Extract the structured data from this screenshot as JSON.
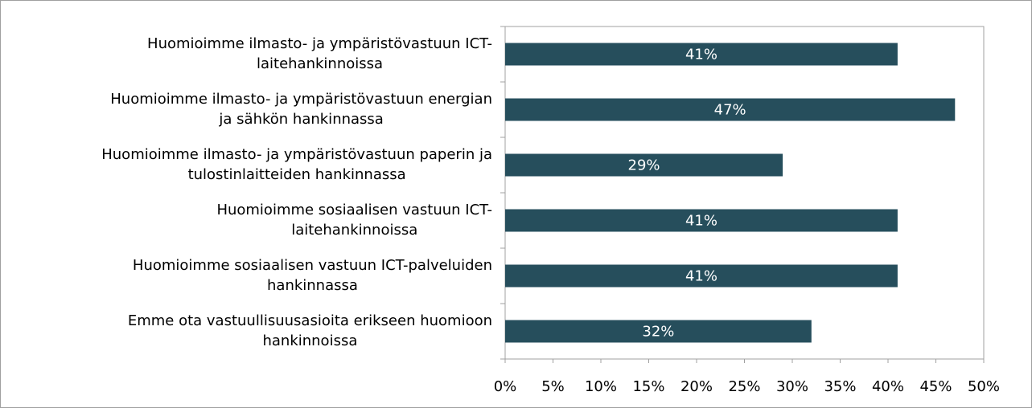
{
  "chart_data": {
    "type": "barh",
    "categories": [
      "Huomioimme ilmasto- ja ympäristövastuun ICT-\nlaitehankinnoissa",
      "Huomioimme ilmasto- ja ympäristövastuun energian\nja sähkön hankinnassa",
      "Huomioimme ilmasto- ja ympäristövastuun paperin ja\ntulostinlaitteiden hankinnassa",
      "Huomioimme sosiaalisen vastuun ICT-\nlaitehankinnoissa",
      "Huomioimme sosiaalisen vastuun ICT-palveluiden\nhankinnassa",
      "Emme ota vastuullisuusasioita erikseen huomioon\nhankinnoissa"
    ],
    "values": [
      41,
      47,
      29,
      41,
      41,
      32
    ],
    "value_labels": [
      "41%",
      "47%",
      "29%",
      "41%",
      "41%",
      "32%"
    ],
    "color": "#264e5c",
    "xlim": [
      0,
      50
    ],
    "xticks": [
      {
        "value": 0,
        "label": "0%"
      },
      {
        "value": 5,
        "label": "5%"
      },
      {
        "value": 10,
        "label": "10%"
      },
      {
        "value": 15,
        "label": "15%"
      },
      {
        "value": 20,
        "label": "20%"
      },
      {
        "value": 25,
        "label": "25%"
      },
      {
        "value": 30,
        "label": "30%"
      },
      {
        "value": 35,
        "label": "35%"
      },
      {
        "value": 40,
        "label": "40%"
      },
      {
        "value": 45,
        "label": "45%"
      },
      {
        "value": 50,
        "label": "50%"
      }
    ]
  }
}
